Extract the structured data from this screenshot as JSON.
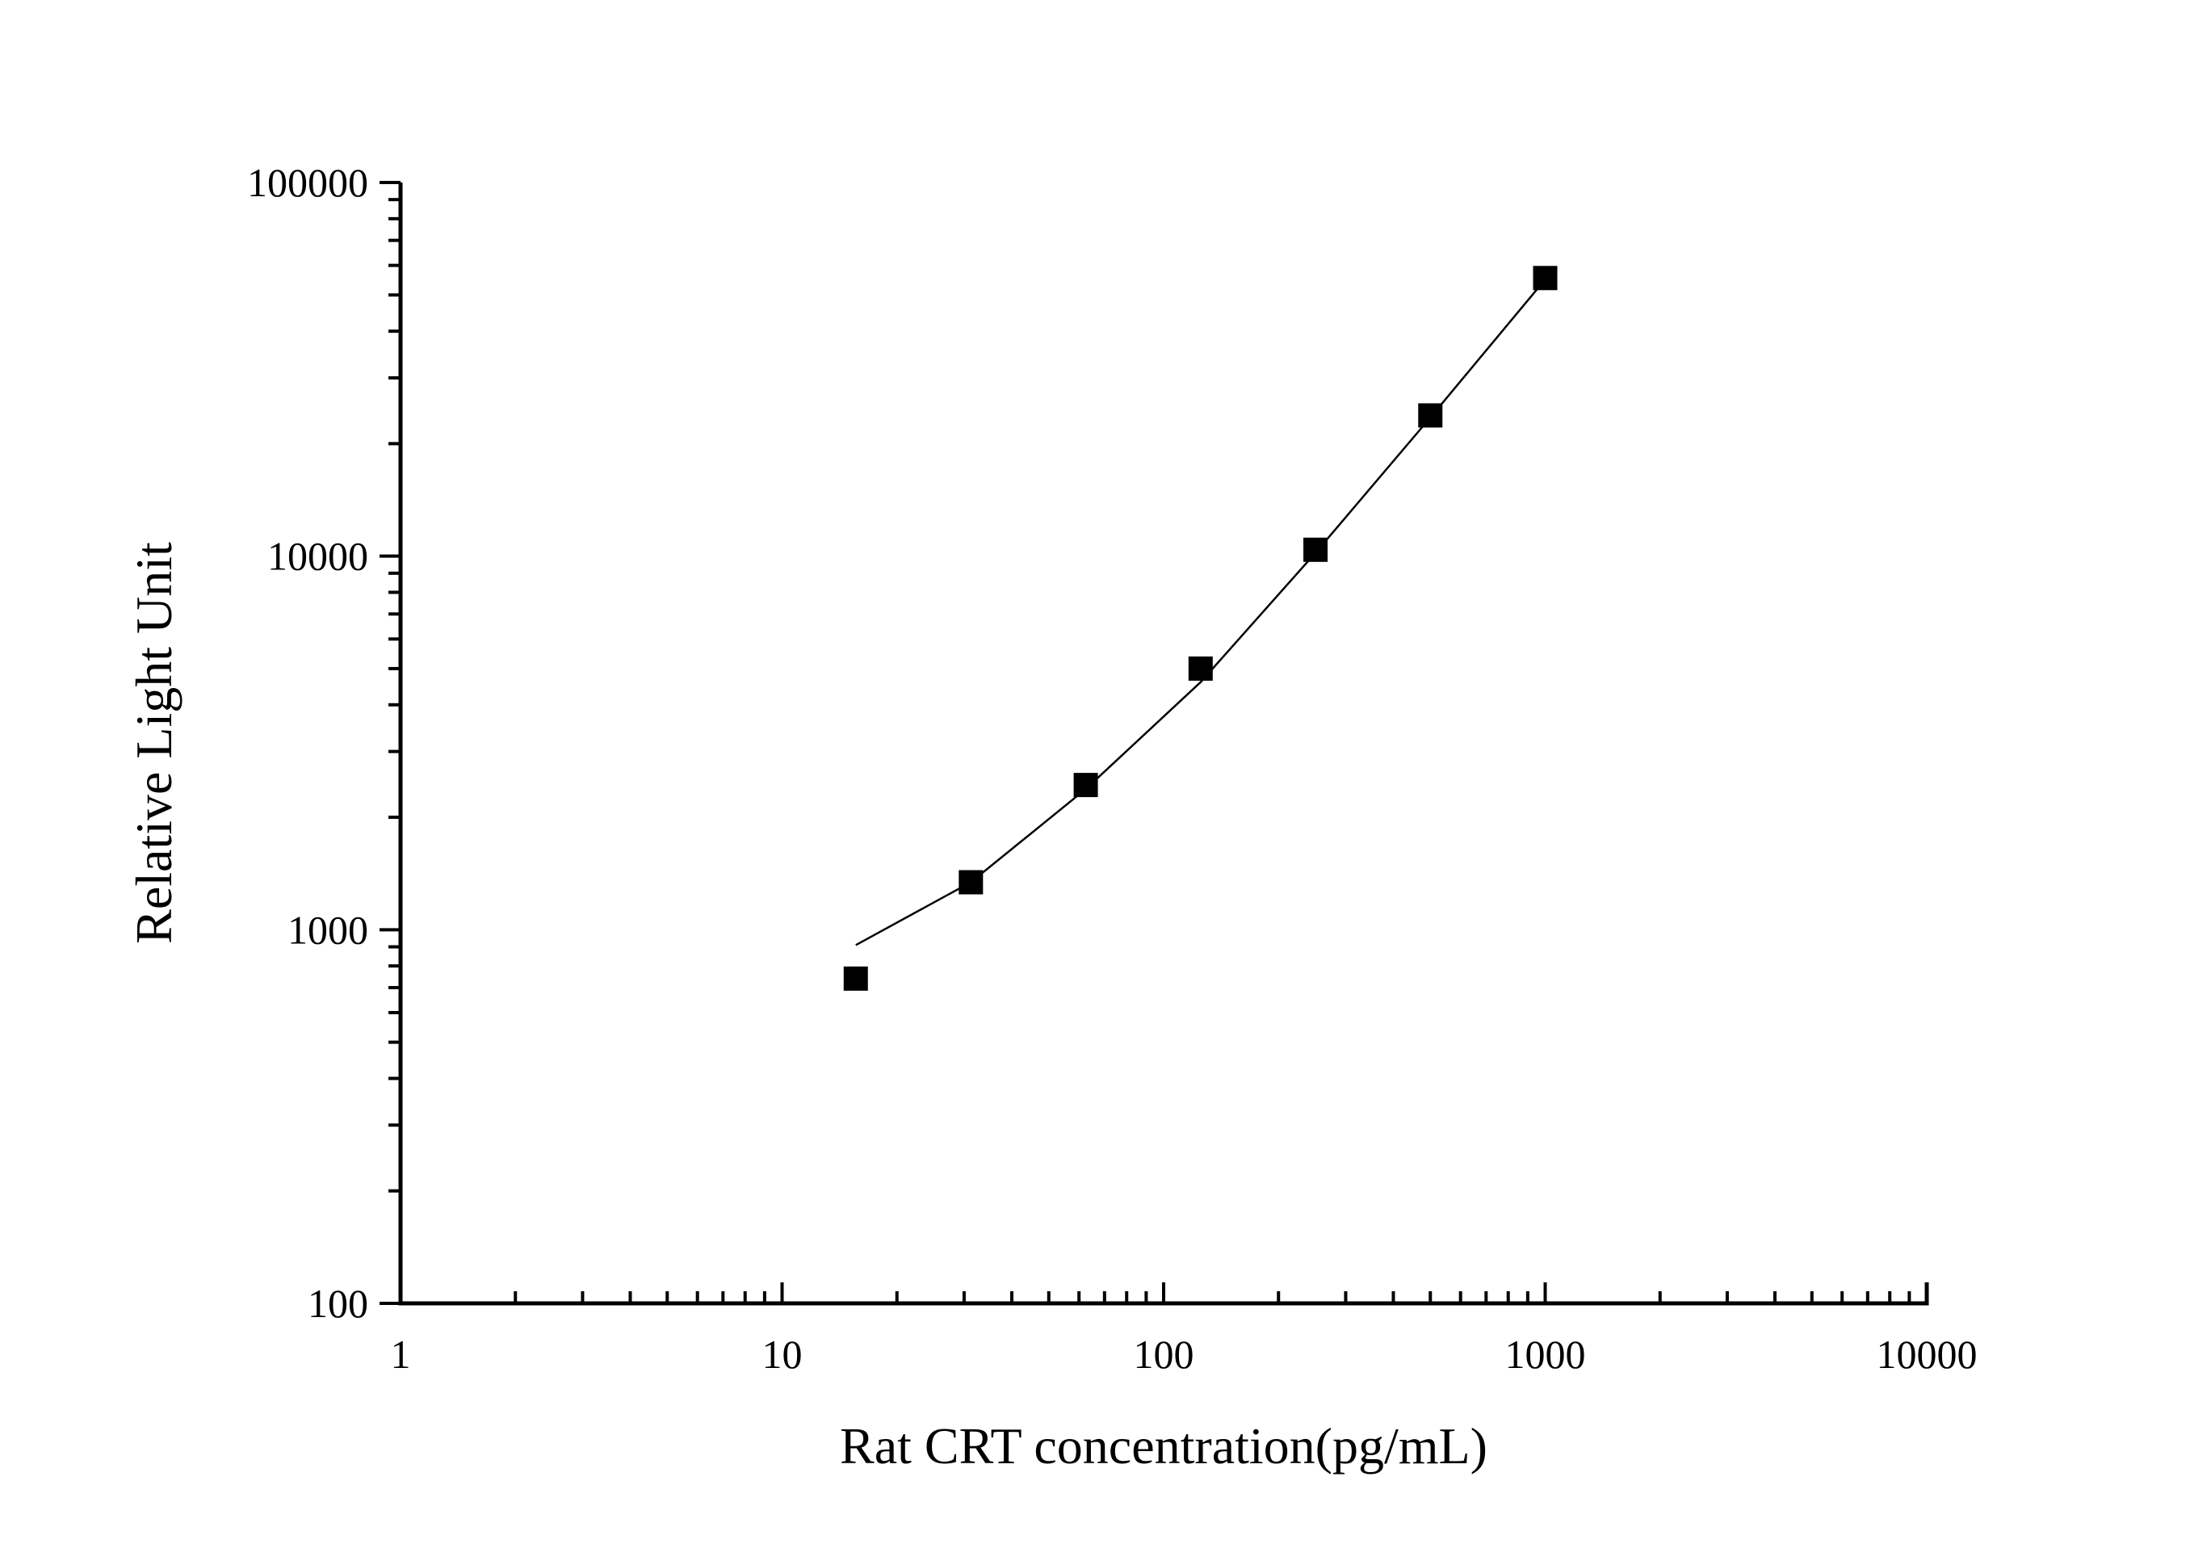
{
  "chart_data": {
    "type": "scatter",
    "xlabel": "Rat CRT concentration(pg/mL)",
    "ylabel": "Relative Light Unit",
    "x_scale": "log",
    "y_scale": "log",
    "xlim": [
      1,
      10000
    ],
    "ylim": [
      100,
      100000
    ],
    "x_ticks": [
      "1",
      "10",
      "100",
      "1000",
      "10000"
    ],
    "y_ticks": [
      "100",
      "1000",
      "10000",
      "100000"
    ],
    "grid": false,
    "legend": "none",
    "series": [
      {
        "marker": "square",
        "color": "#000000",
        "x": [
          15.6,
          31.25,
          62.5,
          125,
          250,
          500,
          1000
        ],
        "y": [
          740,
          1340,
          2440,
          5000,
          10400,
          23800,
          55500
        ]
      }
    ],
    "fit_curve": {
      "x": [
        15.6,
        31.25,
        62.5,
        125,
        250,
        500,
        1000
      ],
      "y": [
        910,
        1340,
        2380,
        4600,
        10200,
        23500,
        55000
      ]
    }
  }
}
